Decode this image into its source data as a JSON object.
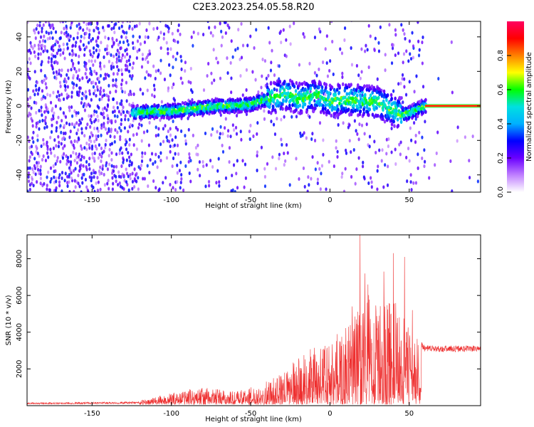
{
  "title": "C2E3.2023.254.05.58.R20",
  "chart_data": [
    {
      "type": "heatmap",
      "title": "",
      "xlabel": "Height of straight line (km)",
      "ylabel": "Frequency (Hz)",
      "xlim": [
        -191,
        95
      ],
      "ylim": [
        -50,
        49
      ],
      "xticks": [
        -150,
        -100,
        -50,
        0,
        50
      ],
      "yticks": [
        -40,
        -20,
        0,
        20,
        40
      ],
      "colorbar": {
        "label": "Normalized spectral amplitude",
        "range": [
          0,
          1
        ],
        "ticks": [
          0.0,
          0.2,
          0.4,
          0.6,
          0.8
        ],
        "tick_labels": [
          "0.0",
          "0.2",
          "0.4",
          "0.6",
          "0.8"
        ],
        "colormap": [
          "#ffffff",
          "#c080ff",
          "#6a00ff",
          "#0000ff",
          "#00b0ff",
          "#00e0e0",
          "#00ff00",
          "#ffff00",
          "#ff8000",
          "#ff0000",
          "#ff0060"
        ]
      },
      "ridge": {
        "points": [
          [
            -125,
            -4
          ],
          [
            -110,
            -3
          ],
          [
            -100,
            -3
          ],
          [
            -90,
            -2
          ],
          [
            -80,
            -1
          ],
          [
            -70,
            0
          ],
          [
            -60,
            0
          ],
          [
            -50,
            1
          ],
          [
            -40,
            4
          ],
          [
            -35,
            5
          ],
          [
            -30,
            7
          ],
          [
            -25,
            6
          ],
          [
            -20,
            4
          ],
          [
            -15,
            5
          ],
          [
            -10,
            6
          ],
          [
            0,
            3
          ],
          [
            10,
            4
          ],
          [
            20,
            3
          ],
          [
            30,
            2
          ],
          [
            40,
            -3
          ],
          [
            45,
            -5
          ],
          [
            50,
            -4
          ],
          [
            55,
            -2
          ],
          [
            60,
            0
          ],
          [
            95,
            0
          ]
        ],
        "line_start": 60,
        "line_value": 0
      },
      "grid": false
    },
    {
      "type": "line",
      "title": "",
      "xlabel": "Height of straight line (km)",
      "ylabel": "SNR (10 * v/v)",
      "xlim": [
        -191,
        95
      ],
      "ylim": [
        0,
        9300
      ],
      "xticks": [
        -150,
        -100,
        -50,
        0,
        50
      ],
      "yticks": [
        2000,
        4000,
        6000,
        8000
      ],
      "series": [
        {
          "color": "#ee2e2e",
          "envelope": [
            [
              -191,
              150
            ],
            [
              -150,
              180
            ],
            [
              -120,
              200
            ],
            [
              -110,
              400
            ],
            [
              -100,
              600
            ],
            [
              -90,
              800
            ],
            [
              -80,
              900
            ],
            [
              -70,
              800
            ],
            [
              -60,
              700
            ],
            [
              -50,
              900
            ],
            [
              -40,
              1200
            ],
            [
              -30,
              1600
            ],
            [
              -20,
              2500
            ],
            [
              -10,
              3000
            ],
            [
              0,
              3500
            ],
            [
              10,
              4000
            ],
            [
              15,
              4800
            ],
            [
              20,
              5500
            ],
            [
              25,
              6000
            ],
            [
              30,
              5200
            ],
            [
              40,
              5600
            ],
            [
              45,
              4800
            ],
            [
              50,
              4000
            ],
            [
              55,
              3600
            ],
            [
              58,
              3300
            ],
            [
              60,
              3100
            ],
            [
              95,
              3100
            ]
          ],
          "peaks": [
            [
              19,
              9300
            ],
            [
              22,
              7200
            ],
            [
              24,
              6600
            ],
            [
              34,
              7300
            ],
            [
              40,
              8300
            ],
            [
              47,
              8100
            ],
            [
              14,
              5400
            ],
            [
              52,
              5200
            ]
          ]
        }
      ],
      "grid": false
    }
  ]
}
